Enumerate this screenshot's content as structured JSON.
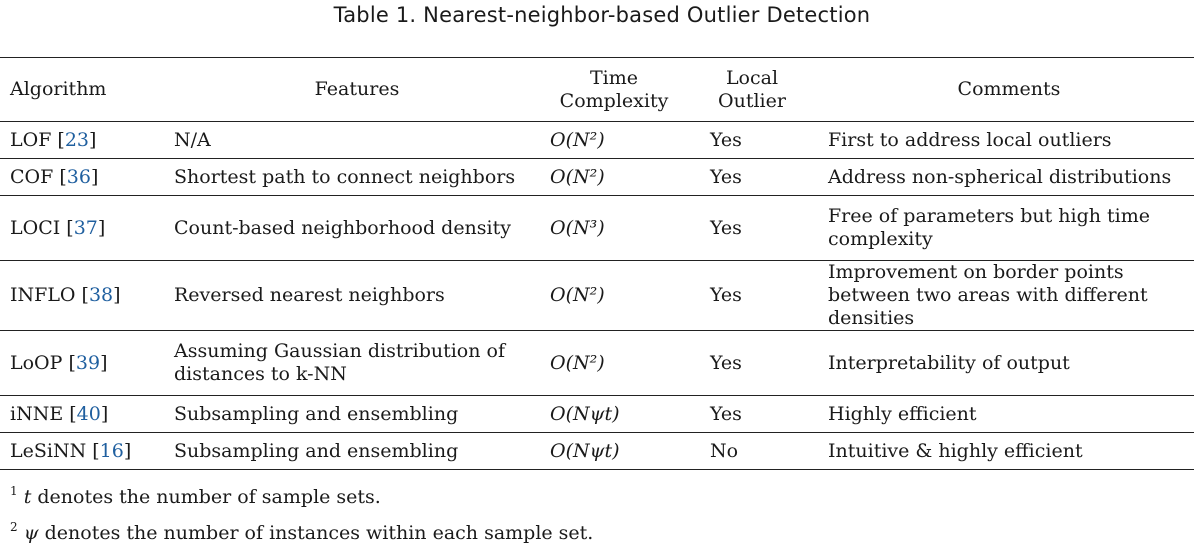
{
  "caption": "Table 1.  Nearest-neighbor-based Outlier Detection",
  "headers": {
    "algorithm": "Algorithm",
    "features": "Features",
    "time_line1": "Time",
    "time_line2": "Complexity",
    "local_line1": "Local",
    "local_line2": "Outlier",
    "comments": "Comments"
  },
  "rows": [
    {
      "name": "LOF",
      "ref": "23",
      "features": "N/A",
      "time": "O(N²)",
      "local": "Yes",
      "comments": "First to address local outliers"
    },
    {
      "name": "COF",
      "ref": "36",
      "features": "Shortest path to connect neighbors",
      "time": "O(N²)",
      "local": "Yes",
      "comments": "Address non-spherical distributions"
    },
    {
      "name": "LOCI",
      "ref": "37",
      "features": "Count-based neighborhood density",
      "time": "O(N³)",
      "local": "Yes",
      "comments": "Free of parameters but high time complexity"
    },
    {
      "name": "INFLO",
      "ref": "38",
      "features": "Reversed nearest neighbors",
      "time": "O(N²)",
      "local": "Yes",
      "comments": "Improvement on border points between two areas with different densities"
    },
    {
      "name": "LoOP",
      "ref": "39",
      "features": "Assuming Gaussian distribution of distances to k-NN",
      "time": "O(N²)",
      "local": "Yes",
      "comments": "Interpretability of output"
    },
    {
      "name": "iNNE",
      "ref": "40",
      "features": "Subsampling and ensembling",
      "time": "O(Nψt)",
      "local": "Yes",
      "comments": "Highly efficient"
    },
    {
      "name": "LeSiNN",
      "ref": "16",
      "features": "Subsampling and ensembling",
      "time": "O(Nψt)",
      "local": "No",
      "comments": "Intuitive & highly efficient"
    }
  ],
  "footnotes": [
    {
      "mark": "1",
      "symbol": "t",
      "text": " denotes the number of sample sets."
    },
    {
      "mark": "2",
      "symbol": "ψ",
      "text": " denotes the number of instances within each sample set."
    }
  ]
}
